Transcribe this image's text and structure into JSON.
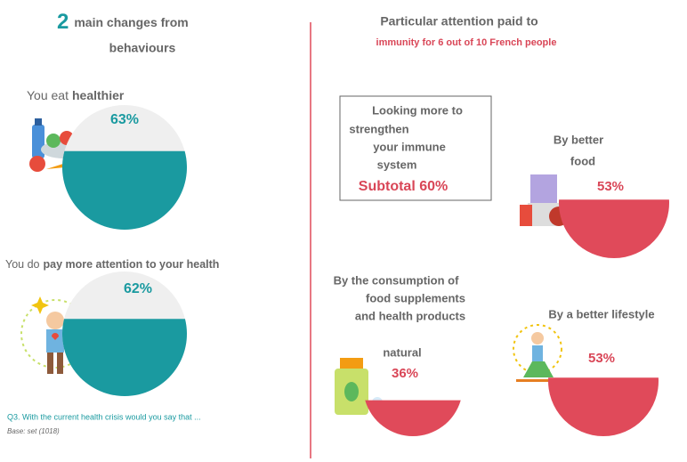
{
  "left": {
    "title": {
      "number": "2",
      "text": "main changes from",
      "text2": "behaviours"
    },
    "items": [
      {
        "label_prefix": "You eat",
        "label_bold": "healthier",
        "value": 63,
        "value_label": "63%"
      },
      {
        "label_prefix": "You do",
        "label_bold": "pay more attention to your health",
        "value": 62,
        "value_label": "62%"
      }
    ],
    "footnote": "Q3. With the current health crisis would you say that ...",
    "base": "Base: set (1018)"
  },
  "right": {
    "title": "Particular attention paid to",
    "subtitle": "immunity for 6 out of 10 French people",
    "box": {
      "lines": [
        "Looking more to",
        "strengthen",
        "your immune",
        "system"
      ],
      "subtotal": "Subtotal 60%"
    },
    "items": [
      {
        "lines": [
          "By better",
          "food"
        ],
        "value": 53,
        "value_label": "53%"
      },
      {
        "lines": [
          "By the consumption of",
          "food supplements",
          "and health products",
          "natural"
        ],
        "value": 36,
        "value_label": "36%"
      },
      {
        "lines": [
          "By a better lifestyle"
        ],
        "value": 53,
        "value_label": "53%"
      }
    ]
  }
}
